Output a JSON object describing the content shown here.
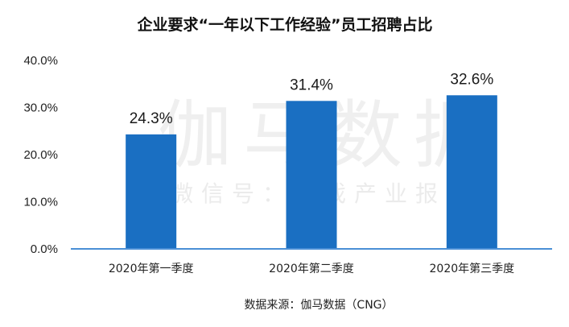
{
  "chart_data": {
    "type": "bar",
    "title": "企业要求“一年以下工作经验”员工招聘占比",
    "categories": [
      "2020年第一季度",
      "2020年第二季度",
      "2020年第三季度"
    ],
    "values": [
      24.3,
      31.4,
      32.6
    ],
    "value_labels": [
      "24.3%",
      "31.4%",
      "32.6%"
    ],
    "y_ticks": [
      0,
      10,
      20,
      30,
      40
    ],
    "y_tick_labels": [
      "0.0%",
      "10.0%",
      "20.0%",
      "30.0%",
      "40.0%"
    ],
    "ylim": [
      0,
      40
    ],
    "xlabel": "",
    "ylabel": "",
    "grid": false,
    "legend": "none",
    "bar_color": "#1a6fc2",
    "axis_color": "#4a8fd6",
    "source": "数据来源：伽马数据（CNG）"
  },
  "watermark": {
    "main": "伽马数据",
    "sub": "微信号：游戏产业报告"
  }
}
